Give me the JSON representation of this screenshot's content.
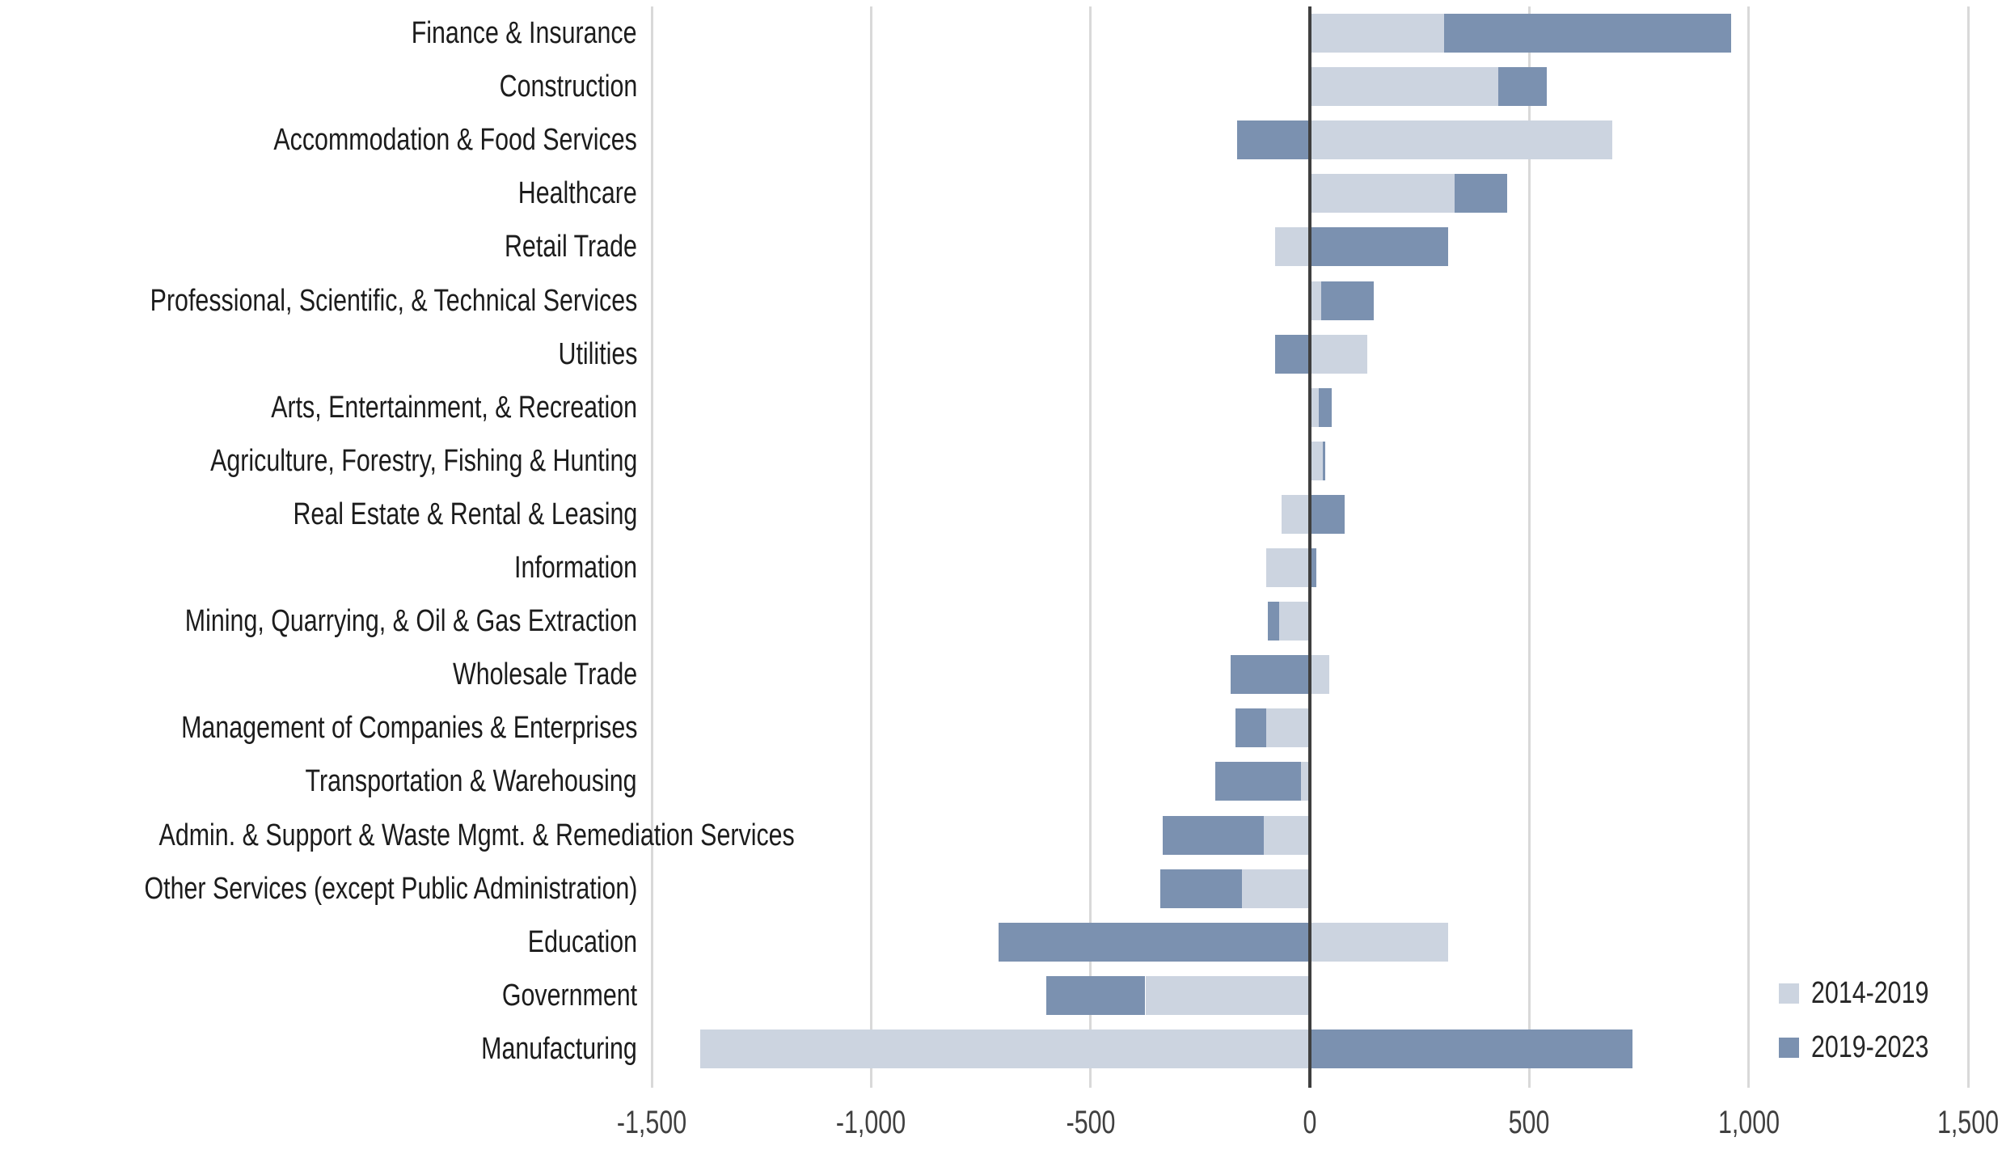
{
  "chart_data": {
    "type": "bar",
    "orientation": "horizontal",
    "stacked": true,
    "diverging": true,
    "title": "",
    "xlabel": "",
    "ylabel": "",
    "xlim": [
      -1500,
      1500
    ],
    "xticks": [
      -1500,
      -1000,
      -500,
      0,
      500,
      1000,
      1500
    ],
    "xtick_labels": [
      "-1,500",
      "-1,000",
      "-500",
      "0",
      "500",
      "1,000",
      "1,500"
    ],
    "grid": "vertical-gridlines-on",
    "legend_position": "bottom-right",
    "categories": [
      "Finance & Insurance",
      "Construction",
      "Accommodation & Food Services",
      "Healthcare",
      "Retail Trade",
      "Professional, Scientific, & Technical Services",
      "Utilities",
      "Arts, Entertainment, & Recreation",
      "Agriculture, Forestry, Fishing & Hunting",
      "Real Estate & Rental & Leasing",
      "Information",
      "Mining, Quarrying, & Oil & Gas Extraction",
      "Wholesale Trade",
      "Management of Companies & Enterprises",
      "Transportation & Warehousing",
      "Admin. & Support & Waste Mgmt. & Remediation Services",
      "Other Services (except Public Administration)",
      "Education",
      "Government",
      "Manufacturing"
    ],
    "series": [
      {
        "name": "2014-2019",
        "color": "#ccd4e0",
        "values": [
          305,
          430,
          690,
          330,
          -80,
          25,
          130,
          20,
          30,
          -65,
          -100,
          -70,
          45,
          -100,
          -20,
          -105,
          -155,
          315,
          -375,
          -1390
        ]
      },
      {
        "name": "2019-2023",
        "color": "#7b91b0",
        "values": [
          655,
          110,
          -165,
          120,
          315,
          120,
          -80,
          30,
          5,
          80,
          15,
          -25,
          -180,
          -70,
          -195,
          -230,
          -185,
          -710,
          -225,
          735
        ]
      }
    ]
  },
  "legend": {
    "items": [
      {
        "label": "2014-2019",
        "color": "#ccd4e0"
      },
      {
        "label": "2019-2023",
        "color": "#7b91b0"
      }
    ]
  },
  "style_colors": {
    "gridline": "#d9d9d9",
    "zero_axis": "#3f3f3f",
    "tick_label": "#404040",
    "category_label": "#1c1c1c",
    "background": "#ffffff"
  }
}
